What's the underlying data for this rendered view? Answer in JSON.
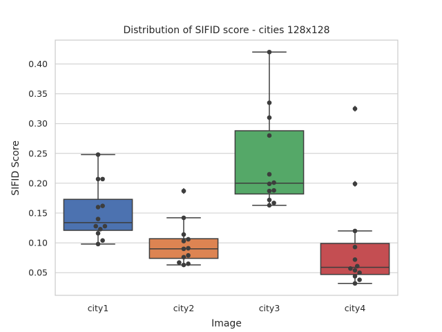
{
  "chart_data": {
    "type": "box",
    "title": "Distribution of SIFID score - cities 128x128",
    "xlabel": "Image",
    "ylabel": "SIFID Score",
    "categories": [
      "city1",
      "city2",
      "city3",
      "city4"
    ],
    "ylim": [
      0.012,
      0.44
    ],
    "yticks": [
      0.05,
      0.1,
      0.15,
      0.2,
      0.25,
      0.3,
      0.35,
      0.4
    ],
    "ytick_labels": [
      "0.05",
      "0.10",
      "0.15",
      "0.20",
      "0.25",
      "0.30",
      "0.35",
      "0.40"
    ],
    "grid": "horizontal",
    "boxes": [
      {
        "category": "city1",
        "color": "#4c72b0",
        "q1": 0.121,
        "median": 0.134,
        "q3": 0.173,
        "whisker_low": 0.098,
        "whisker_high": 0.248,
        "outliers": []
      },
      {
        "category": "city2",
        "color": "#dd8452",
        "q1": 0.074,
        "median": 0.09,
        "q3": 0.107,
        "whisker_low": 0.063,
        "whisker_high": 0.142,
        "outliers": [
          0.187
        ]
      },
      {
        "category": "city3",
        "color": "#55a868",
        "q1": 0.182,
        "median": 0.2,
        "q3": 0.288,
        "whisker_low": 0.163,
        "whisker_high": 0.42,
        "outliers": []
      },
      {
        "category": "city4",
        "color": "#c44e52",
        "q1": 0.047,
        "median": 0.059,
        "q3": 0.099,
        "whisker_low": 0.032,
        "whisker_high": 0.12,
        "outliers": [
          0.199,
          0.325
        ]
      }
    ],
    "points": [
      {
        "category": "city1",
        "values": [
          0.248,
          0.207,
          0.207,
          0.162,
          0.16,
          0.14,
          0.128,
          0.128,
          0.123,
          0.116,
          0.104,
          0.098
        ]
      },
      {
        "category": "city2",
        "values": [
          0.187,
          0.142,
          0.114,
          0.106,
          0.103,
          0.091,
          0.09,
          0.079,
          0.076,
          0.067,
          0.065,
          0.063
        ]
      },
      {
        "category": "city3",
        "values": [
          0.42,
          0.335,
          0.31,
          0.28,
          0.215,
          0.201,
          0.199,
          0.188,
          0.187,
          0.172,
          0.167,
          0.163
        ]
      },
      {
        "category": "city4",
        "values": [
          0.325,
          0.199,
          0.12,
          0.093,
          0.072,
          0.061,
          0.057,
          0.054,
          0.05,
          0.044,
          0.038,
          0.032
        ]
      }
    ]
  }
}
